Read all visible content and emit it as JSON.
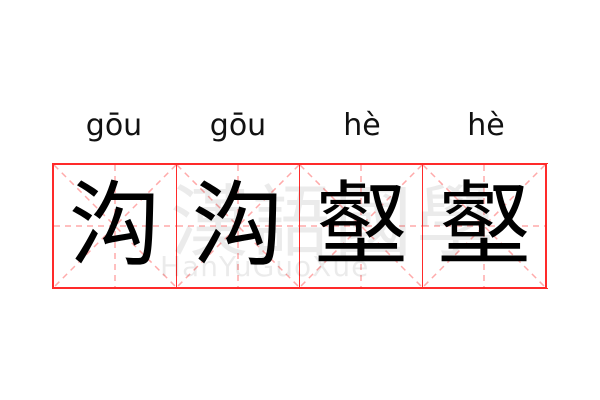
{
  "pinyin": [
    "gōu",
    "gōu",
    "hè",
    "hè"
  ],
  "characters": [
    "沟",
    "沟",
    "壑",
    "壑"
  ],
  "watermark": {
    "chinese": "漢語國學",
    "latin": "HanYuGuoXue"
  },
  "colors": {
    "grid_border": "#ff2a2a",
    "guide_lines": "#ffaaaa",
    "text": "#000000"
  }
}
